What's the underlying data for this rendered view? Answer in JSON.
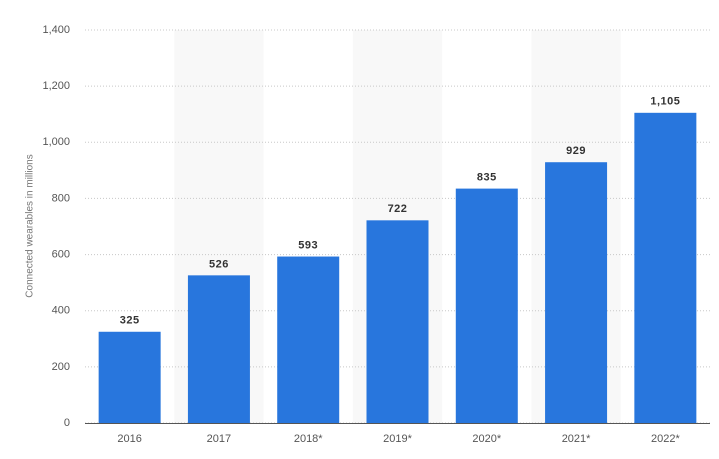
{
  "chart_data": {
    "type": "bar",
    "y_label": "Connected wearables in millions",
    "categories": [
      "2016",
      "2017",
      "2018*",
      "2019*",
      "2020*",
      "2021*",
      "2022*"
    ],
    "values": [
      325,
      526,
      593,
      722,
      835,
      929,
      1105
    ],
    "value_labels": [
      "325",
      "526",
      "593",
      "722",
      "835",
      "929",
      "1,105"
    ],
    "color": "#2876dd",
    "ylim": [
      0,
      1400
    ],
    "yticks": [
      0,
      200,
      400,
      600,
      800,
      {
        "value": 1000,
        "label": "1,000"
      },
      {
        "value": 1200,
        "label": "1,200"
      },
      {
        "value": 1400,
        "label": "1,400"
      }
    ],
    "grid": true
  }
}
